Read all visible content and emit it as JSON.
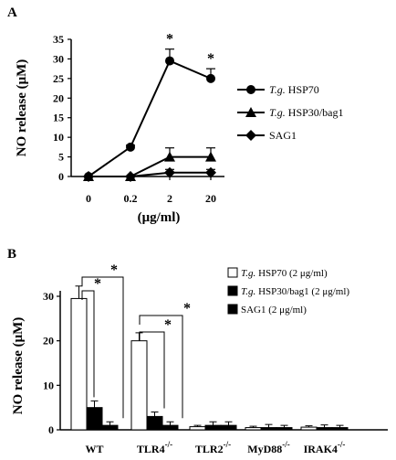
{
  "chart_data": [
    {
      "panel_label": "A",
      "type": "line",
      "categories": [
        "0",
        "0.2",
        "2",
        "20"
      ],
      "xlabel": "(μg/ml)",
      "ylabel": "NO release (μM)",
      "ylim": [
        0,
        35
      ],
      "yticks": [
        "0",
        "5",
        "10",
        "15",
        "20",
        "25",
        "30",
        "35"
      ],
      "series": [
        {
          "name_italic": "T.g.",
          "name_rest": " HSP70",
          "marker": "circle",
          "values": [
            0,
            7.5,
            29.5,
            25
          ],
          "errors": [
            0,
            0.5,
            3,
            2.5
          ]
        },
        {
          "name_italic": "T.g.",
          "name_rest": " HSP30/bag1",
          "marker": "triangle",
          "values": [
            0,
            0,
            5,
            5
          ],
          "errors": [
            0,
            0,
            2.3,
            2.3
          ]
        },
        {
          "name_italic": "",
          "name_rest": "SAG1",
          "marker": "diamond",
          "values": [
            0,
            0,
            1,
            1
          ],
          "errors": [
            0,
            0,
            0.8,
            0.8
          ]
        }
      ],
      "significance": [
        "*",
        "*"
      ],
      "legend_position": "right"
    },
    {
      "panel_label": "B",
      "type": "bar",
      "categories": [
        {
          "base": "WT",
          "sup": ""
        },
        {
          "base": "TLR4",
          "sup": "-/-"
        },
        {
          "base": "TLR2",
          "sup": "-/-"
        },
        {
          "base": "MyD88",
          "sup": "-/-"
        },
        {
          "base": "IRAK4",
          "sup": "-/-"
        }
      ],
      "ylabel": "NO release (μM)",
      "ylim": [
        0,
        35
      ],
      "yticks": [
        "0",
        "10",
        "20",
        "30"
      ],
      "series": [
        {
          "name_italic": "T.g.",
          "name_rest": " HSP70 (2 μg/ml)",
          "color": "#ffffff",
          "values": [
            29.5,
            20,
            0.7,
            0.5,
            0.6
          ],
          "errors": [
            2.8,
            1.8,
            0.3,
            0.3,
            0.3
          ]
        },
        {
          "name_italic": "T.g.",
          "name_rest": " HSP30/bag1  (2 μg/ml)",
          "color": "#000000",
          "values": [
            5,
            3,
            1,
            0.5,
            0.5
          ],
          "errors": [
            1.5,
            1,
            0.8,
            0.7,
            0.6
          ]
        },
        {
          "name_italic": "",
          "name_rest": "SAG1 (2 μg/ml)",
          "color": "#000000",
          "values": [
            1,
            1,
            1,
            0.5,
            0.5
          ],
          "errors": [
            0.8,
            0.8,
            0.8,
            0.5,
            0.5
          ]
        }
      ],
      "significance": [
        "*",
        "*",
        "*",
        "*"
      ],
      "legend_position": "top-right"
    }
  ]
}
